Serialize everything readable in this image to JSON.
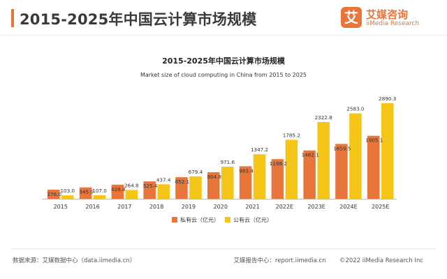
{
  "header": {
    "title": "2015-2025年中国云计算市场规模",
    "accent_color": "#e8753a"
  },
  "brand": {
    "mark": "艾",
    "name_cn": "艾媒咨询",
    "name_en": "iiMedia Research",
    "color": "#e8753a"
  },
  "footer": {
    "source": "数据来源：艾媒数据中心（data.iimedia.cn）",
    "report_center": "艾媒报告中心：report.iimedia.cn",
    "copyright": "©2022 iiMedia Research Inc"
  },
  "chart_data": {
    "type": "bar",
    "title": "2015-2025年中国云计算市场规模",
    "subtitle": "Market size of cloud computing in China from 2015 to 2025",
    "categories": [
      "2015",
      "2016",
      "2017",
      "2018",
      "2019",
      "2020",
      "2021",
      "2022E",
      "2023E",
      "2024E",
      "2025E"
    ],
    "series": [
      {
        "name": "私有云（亿元）",
        "color": "#e8753a",
        "values": [
          276.0,
          345.0,
          426.8,
          525.4,
          652.1,
          804.8,
          983.4,
          1198.2,
          1462.1,
          1659.5,
          1905.1
        ],
        "labels": [
          "276.0",
          "345.0",
          "426.8",
          "525.4",
          "652.1",
          "804.8",
          "983.4",
          "1198.2",
          "1462.1",
          "1659.5",
          "1905.1"
        ]
      },
      {
        "name": "公有云（亿元）",
        "color": "#f5c518",
        "values": [
          103.0,
          107.0,
          264.8,
          437.4,
          679.4,
          971.6,
          1347.2,
          1785.2,
          2322.8,
          2583.0,
          2890.3
        ],
        "labels": [
          "103.0",
          "107.0",
          "264.8",
          "437.4",
          "679.4",
          "971.6",
          "1347.2",
          "1785.2",
          "2322.8",
          "2583.0",
          "2890.3"
        ]
      }
    ],
    "legend_position": "bottom-center",
    "grid": false
  }
}
